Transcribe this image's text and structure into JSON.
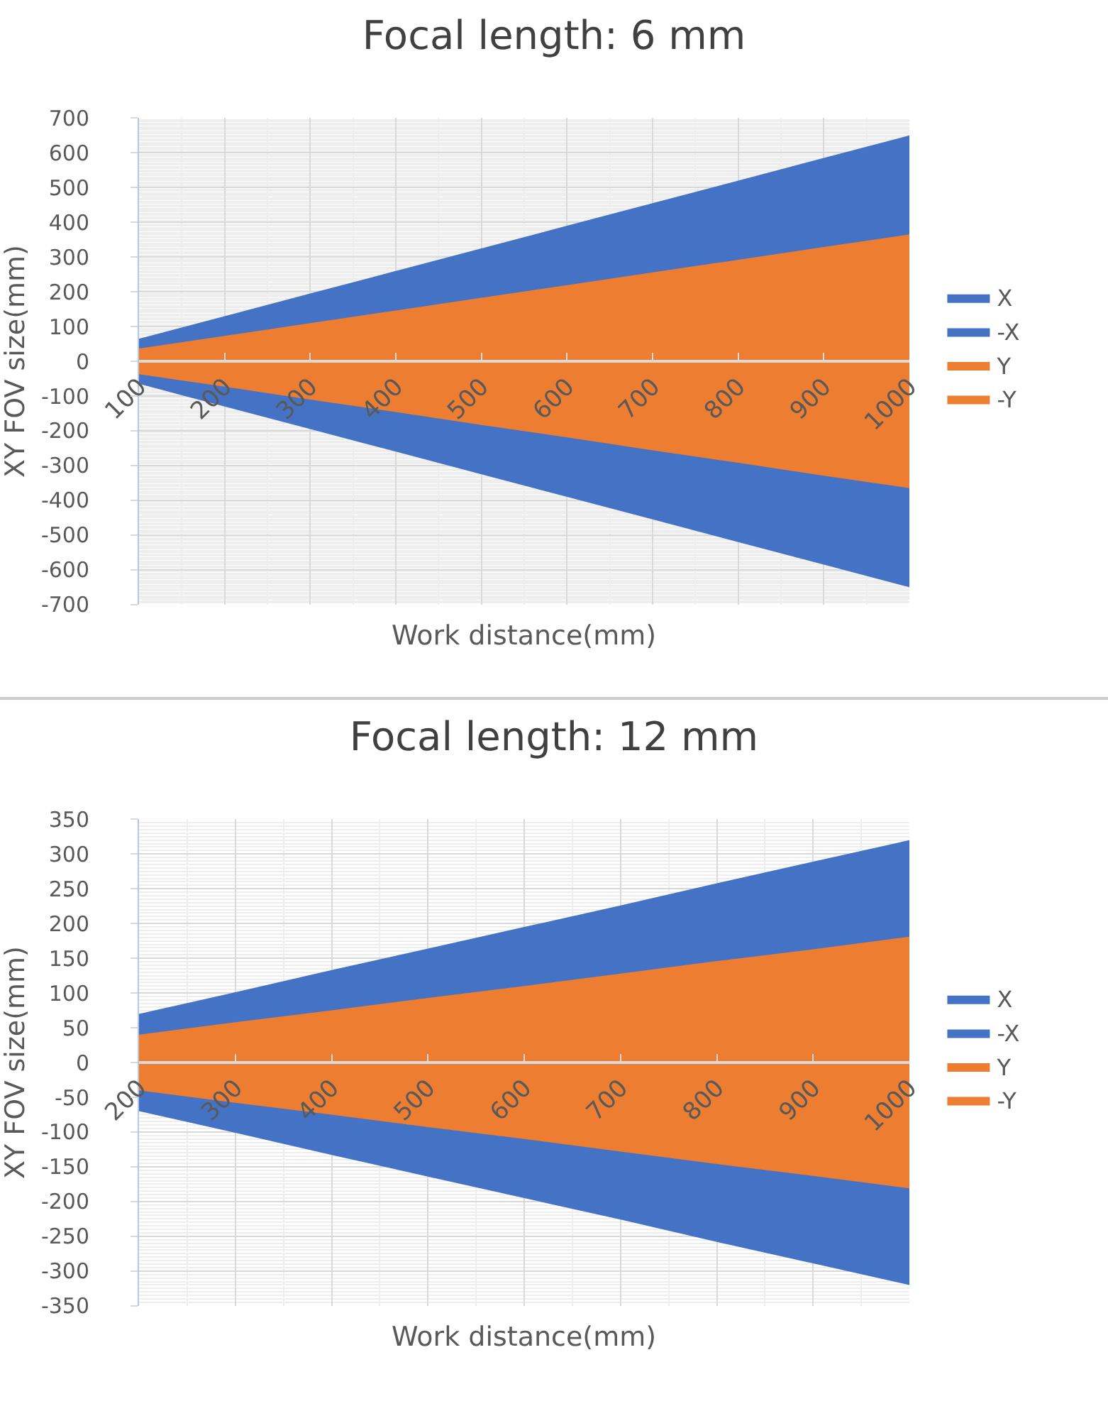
{
  "chart_data": [
    {
      "type": "area",
      "title": "Focal length: 6 mm",
      "xlabel": "Work distance(mm)",
      "ylabel": "XY FOV size(mm)",
      "x": [
        100,
        200,
        300,
        400,
        500,
        600,
        700,
        800,
        900,
        1000
      ],
      "series": [
        {
          "name": "X",
          "color": "#4472c4",
          "values": [
            65,
            130,
            195,
            260,
            325,
            390,
            455,
            520,
            585,
            650
          ]
        },
        {
          "name": "-X",
          "color": "#4472c4",
          "values": [
            -65,
            -130,
            -195,
            -260,
            -325,
            -390,
            -455,
            -520,
            -585,
            -650
          ]
        },
        {
          "name": "Y",
          "color": "#ed7d31",
          "values": [
            37,
            73,
            110,
            146,
            183,
            219,
            256,
            292,
            329,
            365
          ]
        },
        {
          "name": "-Y",
          "color": "#ed7d31",
          "values": [
            -37,
            -73,
            -110,
            -146,
            -183,
            -219,
            -256,
            -292,
            -329,
            -365
          ]
        }
      ],
      "xlim": [
        100,
        1000
      ],
      "xticks": [
        100,
        200,
        300,
        400,
        500,
        600,
        700,
        800,
        900,
        1000
      ],
      "ylim": [
        -700,
        700
      ],
      "yticks": [
        -700,
        -600,
        -500,
        -400,
        -300,
        -200,
        -100,
        0,
        100,
        200,
        300,
        400,
        500,
        600,
        700
      ],
      "grid": true,
      "legend": "right"
    },
    {
      "type": "area",
      "title": "Focal length: 12 mm",
      "xlabel": "Work distance(mm)",
      "ylabel": "XY FOV size(mm)",
      "x": [
        200,
        300,
        400,
        500,
        600,
        700,
        800,
        900,
        1000
      ],
      "series": [
        {
          "name": "X",
          "color": "#4472c4",
          "values": [
            70,
            101,
            133,
            164,
            195,
            226,
            258,
            289,
            320
          ]
        },
        {
          "name": "-X",
          "color": "#4472c4",
          "values": [
            -70,
            -101,
            -133,
            -164,
            -195,
            -226,
            -258,
            -289,
            -320
          ]
        },
        {
          "name": "Y",
          "color": "#ed7d31",
          "values": [
            40,
            58,
            75,
            93,
            110,
            128,
            146,
            163,
            181
          ]
        },
        {
          "name": "-Y",
          "color": "#ed7d31",
          "values": [
            -40,
            -58,
            -75,
            -93,
            -110,
            -128,
            -146,
            -163,
            -181
          ]
        }
      ],
      "xlim": [
        200,
        1000
      ],
      "xticks": [
        200,
        300,
        400,
        500,
        600,
        700,
        800,
        900,
        1000
      ],
      "ylim": [
        -350,
        350
      ],
      "yticks": [
        -350,
        -300,
        -250,
        -200,
        -150,
        -100,
        -50,
        0,
        50,
        100,
        150,
        200,
        250,
        300,
        350
      ],
      "grid": true,
      "legend": "right"
    }
  ]
}
